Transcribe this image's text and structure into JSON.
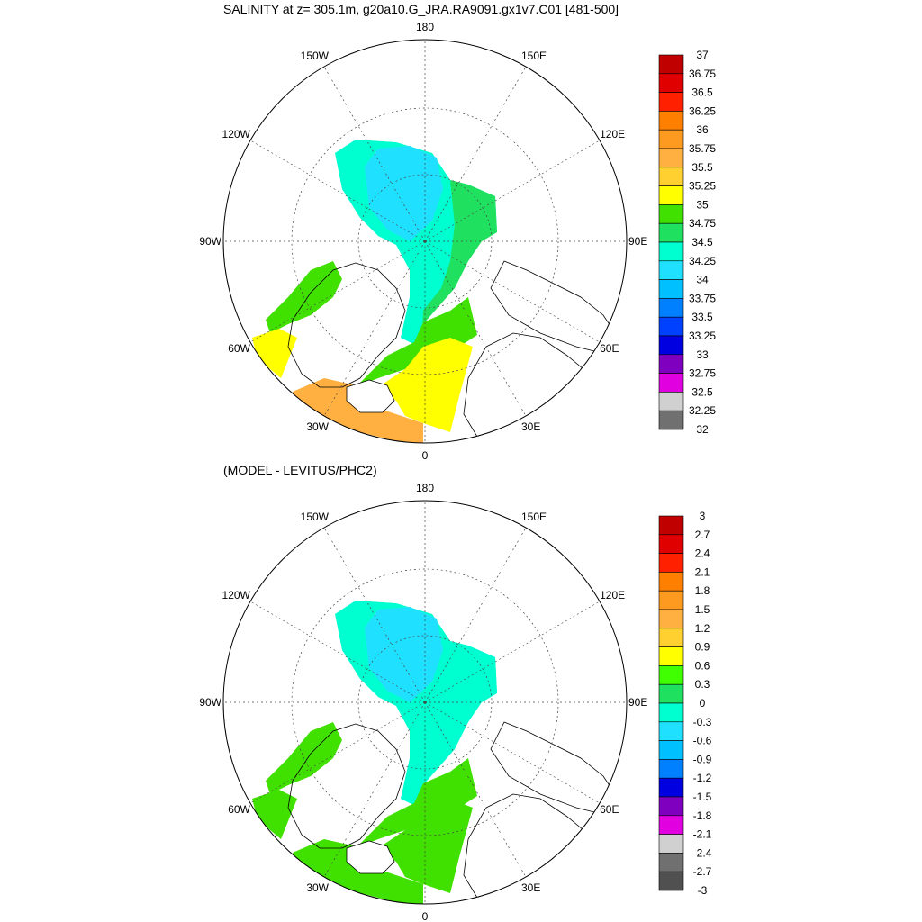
{
  "panels": [
    {
      "title": "SALINITY at z= 305.1m, g20a10.G_JRA.RA9091.gx1v7.C01 [481-500]",
      "lon_labels": [
        "180",
        "150E",
        "120E",
        "90E",
        "60E",
        "30E",
        "0",
        "30W",
        "60W",
        "90W",
        "120W",
        "150W"
      ],
      "legend_labels": [
        "37",
        "36.75",
        "36.5",
        "36.25",
        "36",
        "35.75",
        "35.5",
        "35.25",
        "35",
        "34.75",
        "34.5",
        "34.25",
        "34",
        "33.75",
        "33.5",
        "33.25",
        "33",
        "32.75",
        "32.5",
        "32.25",
        "32"
      ],
      "legend_colors": [
        "#c00000",
        "#e00000",
        "#ff2000",
        "#ff8000",
        "#ff9a20",
        "#ffb040",
        "#ffd030",
        "#ffff00",
        "#40e000",
        "#20e060",
        "#00ffd0",
        "#20e0ff",
        "#00c0ff",
        "#0080ff",
        "#0040ff",
        "#0000e0",
        "#8000c0",
        "#e000e0",
        "#d0d0d0",
        "#707070"
      ],
      "regions": {
        "arctic_core": "#20e0ff",
        "arctic_basin": "#00ffd0",
        "eurasian_shelf": "#20e060",
        "atlantic_inflow": "#40e000",
        "barents": "#ffff00",
        "norwegian_sea": "#ffb040",
        "baffin": "#40e000",
        "labrador": "#ffff00"
      }
    },
    {
      "title": "(MODEL - LEVITUS/PHC2)",
      "lon_labels": [
        "180",
        "150E",
        "120E",
        "90E",
        "60E",
        "30E",
        "0",
        "30W",
        "60W",
        "90W",
        "120W",
        "150W"
      ],
      "legend_labels": [
        "3",
        "2.7",
        "2.4",
        "2.1",
        "1.8",
        "1.5",
        "1.2",
        "0.9",
        "0.6",
        "0.3",
        "0",
        "-0.3",
        "-0.6",
        "-0.9",
        "-1.2",
        "-1.5",
        "-1.8",
        "-2.1",
        "-2.4",
        "-2.7",
        "-3"
      ],
      "legend_colors": [
        "#c00000",
        "#e00000",
        "#ff2000",
        "#ff8000",
        "#ff9a20",
        "#ffb040",
        "#ffd030",
        "#ffff00",
        "#40ff00",
        "#20e060",
        "#00ffd0",
        "#20e0ff",
        "#00c0ff",
        "#0080ff",
        "#0000e0",
        "#8000c0",
        "#e000e0",
        "#d0d0d0",
        "#707070",
        "#505050"
      ],
      "regions": {
        "arctic_core": "#20e0ff",
        "arctic_basin": "#00ffd0",
        "eurasian_shelf": "#00ffd0",
        "atlantic_inflow": "#40e000",
        "barents": "#40e000",
        "norwegian_sea": "#40e000",
        "baffin": "#40e000",
        "labrador": "#40e000"
      }
    }
  ]
}
